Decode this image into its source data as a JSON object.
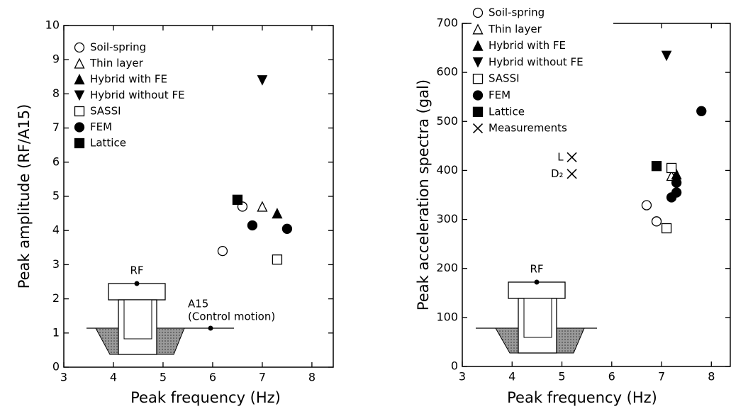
{
  "chart_data": [
    {
      "type": "scatter",
      "xlabel": "Peak frequency (Hz)",
      "ylabel": "Peak amplitude (RF/A15)",
      "xlim": [
        3,
        8.43
      ],
      "ylim": [
        0,
        10
      ],
      "xticks": [
        3,
        4,
        5,
        6,
        7,
        8
      ],
      "yticks": [
        0,
        1,
        2,
        3,
        4,
        5,
        6,
        7,
        8,
        9,
        10
      ],
      "grid": false,
      "annotations": [
        "RF",
        "A15",
        "(Control motion)"
      ],
      "series": [
        {
          "name": "Soil-spring",
          "marker": "circle-open",
          "color": "#000000",
          "x": [
            6.2,
            6.6
          ],
          "values": [
            3.4,
            4.7
          ]
        },
        {
          "name": "Thin layer",
          "marker": "triangle-open",
          "color": "#000000",
          "x": [
            7.0
          ],
          "values": [
            4.7
          ]
        },
        {
          "name": "Hybrid with FE",
          "marker": "triangle",
          "color": "#000000",
          "x": [
            7.3
          ],
          "values": [
            4.5
          ]
        },
        {
          "name": "Hybrid without FE",
          "marker": "triangle-down",
          "color": "#000000",
          "x": [
            7.0
          ],
          "values": [
            8.4
          ]
        },
        {
          "name": "SASSI",
          "marker": "square-open",
          "color": "#000000",
          "x": [
            7.3
          ],
          "values": [
            3.15
          ]
        },
        {
          "name": "FEM",
          "marker": "circle",
          "color": "#000000",
          "x": [
            6.8,
            7.5
          ],
          "values": [
            4.15,
            4.05
          ]
        },
        {
          "name": "Lattice",
          "marker": "square",
          "color": "#000000",
          "x": [
            6.5
          ],
          "values": [
            4.9
          ]
        }
      ]
    },
    {
      "type": "scatter",
      "xlabel": "Peak frequency (Hz)",
      "ylabel": "Peak acceleration spectra (gal)",
      "xlim": [
        3,
        8.38
      ],
      "ylim": [
        0,
        700
      ],
      "xticks": [
        3,
        4,
        5,
        6,
        7,
        8
      ],
      "yticks": [
        0,
        100,
        200,
        300,
        400,
        500,
        600,
        700
      ],
      "grid": false,
      "annotations": [
        "RF"
      ],
      "series": [
        {
          "name": "Soil-spring",
          "marker": "circle-open",
          "color": "#000000",
          "x": [
            6.7,
            6.9
          ],
          "values": [
            329,
            296
          ]
        },
        {
          "name": "Thin layer",
          "marker": "triangle-open",
          "color": "#000000",
          "x": [
            7.2
          ],
          "values": [
            389
          ]
        },
        {
          "name": "Hybrid with FE",
          "marker": "triangle",
          "color": "#000000",
          "x": [
            7.3
          ],
          "values": [
            392
          ]
        },
        {
          "name": "Hybrid without FE",
          "marker": "triangle-down",
          "color": "#000000",
          "x": [
            7.1
          ],
          "values": [
            634
          ]
        },
        {
          "name": "SASSI",
          "marker": "square-open",
          "color": "#000000",
          "x": [
            7.2,
            7.1
          ],
          "values": [
            405,
            282
          ]
        },
        {
          "name": "FEM",
          "marker": "circle",
          "color": "#000000",
          "x": [
            7.8,
            7.3,
            7.3,
            7.2
          ],
          "values": [
            521,
            375,
            355,
            345
          ]
        },
        {
          "name": "Lattice",
          "marker": "square",
          "color": "#000000",
          "x": [
            6.9
          ],
          "values": [
            409
          ]
        },
        {
          "name": "Measurements",
          "marker": "x",
          "color": "#000000",
          "x": [
            5.2,
            5.2
          ],
          "values": [
            427,
            393
          ],
          "point_labels": [
            "L",
            "D₂"
          ]
        }
      ]
    }
  ]
}
